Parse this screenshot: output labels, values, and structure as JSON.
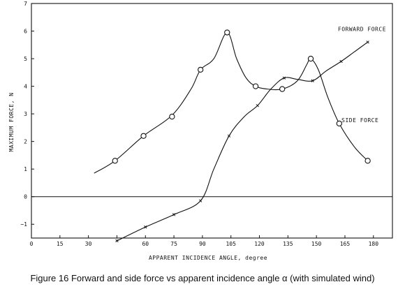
{
  "chart_data": {
    "type": "line",
    "title": "",
    "caption": "Figure 16 Forward and side force vs apparent incidence angle α (with simulated wind)",
    "xlabel": "APPARENT INCIDENCE ANGLE, degree",
    "ylabel": "MAXIMUM FORCE, N",
    "xlim": [
      0,
      190
    ],
    "ylim": [
      -1.5,
      7
    ],
    "xticks": [
      0,
      15,
      30,
      45,
      60,
      75,
      90,
      105,
      120,
      135,
      150,
      165,
      180
    ],
    "yticks": [
      -1,
      0,
      1,
      2,
      3,
      4,
      5,
      6,
      7
    ],
    "x_tick_labels": [
      "0",
      "15",
      "30",
      "",
      "60",
      "75",
      "90",
      "105",
      "120",
      "135",
      "150",
      "165",
      "180"
    ],
    "grid": false,
    "series": [
      {
        "name": "SIDE FORCE",
        "marker": "circle",
        "points": [
          [
            44,
            1.3
          ],
          [
            59,
            2.2
          ],
          [
            74,
            2.9
          ],
          [
            89,
            4.6
          ],
          [
            103,
            5.95
          ],
          [
            118,
            4.0
          ],
          [
            132,
            3.9
          ],
          [
            147,
            5.0
          ],
          [
            162,
            2.65
          ],
          [
            177,
            1.3
          ]
        ],
        "curve": [
          [
            33,
            0.85
          ],
          [
            44,
            1.3
          ],
          [
            59,
            2.2
          ],
          [
            74,
            2.95
          ],
          [
            84,
            3.9
          ],
          [
            89,
            4.6
          ],
          [
            96,
            5.0
          ],
          [
            103,
            5.95
          ],
          [
            108,
            5.0
          ],
          [
            113,
            4.3
          ],
          [
            118,
            4.0
          ],
          [
            124,
            3.9
          ],
          [
            132,
            3.9
          ],
          [
            140,
            4.2
          ],
          [
            145,
            4.8
          ],
          [
            147,
            5.0
          ],
          [
            151,
            4.6
          ],
          [
            156,
            3.6
          ],
          [
            162,
            2.65
          ],
          [
            170,
            1.8
          ],
          [
            177,
            1.3
          ]
        ]
      },
      {
        "name": "FORWARD FORCE",
        "marker": "x",
        "points": [
          [
            45,
            -1.6
          ],
          [
            60,
            -1.1
          ],
          [
            75,
            -0.65
          ],
          [
            89,
            -0.15
          ],
          [
            104,
            2.2
          ],
          [
            119,
            3.3
          ],
          [
            133,
            4.3
          ],
          [
            148,
            4.2
          ],
          [
            163,
            4.9
          ],
          [
            177,
            5.6
          ]
        ],
        "curve": [
          [
            45,
            -1.6
          ],
          [
            60,
            -1.1
          ],
          [
            75,
            -0.65
          ],
          [
            89,
            -0.15
          ],
          [
            96,
            1.0
          ],
          [
            104,
            2.2
          ],
          [
            112,
            2.9
          ],
          [
            119,
            3.3
          ],
          [
            126,
            3.9
          ],
          [
            133,
            4.3
          ],
          [
            140,
            4.25
          ],
          [
            148,
            4.2
          ],
          [
            155,
            4.55
          ],
          [
            163,
            4.9
          ],
          [
            170,
            5.25
          ],
          [
            177,
            5.6
          ]
        ]
      }
    ],
    "annotations": [
      {
        "text": "FORWARD FORCE",
        "x": 174,
        "y": 6.0
      },
      {
        "text": "SIDE FORCE",
        "x": 173,
        "y": 2.7
      }
    ]
  }
}
